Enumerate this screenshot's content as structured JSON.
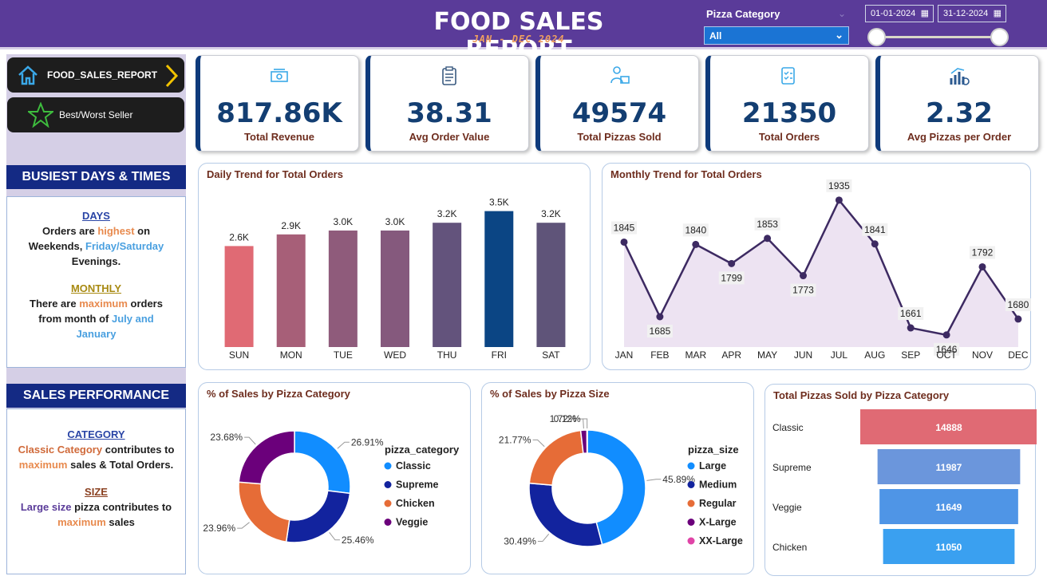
{
  "header": {
    "title": "FOOD SALES REPORT",
    "subtitle": "JAN - DEC 2024",
    "filter_label": "Pizza Category",
    "filter_value": "All",
    "date_start": "01-01-2024",
    "date_end": "31-12-2024"
  },
  "nav": {
    "report_label": "FOOD_SALES_REPORT",
    "bestworst_label": "Best/Worst Seller"
  },
  "busiest": {
    "title": "BUSIEST DAYS & TIMES",
    "days_head": "DAYS",
    "monthly_head": "MONTHLY"
  },
  "perf": {
    "title": "SALES PERFORMANCE",
    "category_head": "CATEGORY",
    "size_head": "SIZE"
  },
  "kpis": [
    {
      "value": "817.86K",
      "label": "Total Revenue",
      "icon": "cash-icon"
    },
    {
      "value": "38.31",
      "label": "Avg Order Value",
      "icon": "clipboard-icon"
    },
    {
      "value": "49574",
      "label": "Total Pizzas Sold",
      "icon": "delivery-icon"
    },
    {
      "value": "21350",
      "label": "Total Orders",
      "icon": "order-checklist-icon"
    },
    {
      "value": "2.32",
      "label": "Avg Pizzas per Order",
      "icon": "bar-growth-icon"
    }
  ],
  "colors": {
    "header": "#5a3b99",
    "kpi_accent": "#0e3a7b",
    "nav_bg": "#1d1d1d",
    "section_title": "#142a84"
  },
  "chart_data": [
    {
      "id": "daily",
      "type": "bar",
      "title": "Daily Trend for Total Orders",
      "categories": [
        "SUN",
        "MON",
        "TUE",
        "WED",
        "THU",
        "FRI",
        "SAT"
      ],
      "values": [
        2.6,
        2.9,
        3.0,
        3.0,
        3.2,
        3.5,
        3.2
      ],
      "data_labels": [
        "2.6K",
        "2.9K",
        "3.0K",
        "3.0K",
        "3.2K",
        "3.5K",
        "3.2K"
      ],
      "colors": [
        "#e06a74",
        "#a75f78",
        "#8f5b7b",
        "#85597d",
        "#63537c",
        "#0b4584",
        "#5f5479"
      ],
      "ylim": [
        0,
        3.8
      ]
    },
    {
      "id": "monthly",
      "type": "area",
      "title": "Monthly Trend for Total Orders",
      "categories": [
        "JAN",
        "FEB",
        "MAR",
        "APR",
        "MAY",
        "JUN",
        "JUL",
        "AUG",
        "SEP",
        "OCT",
        "NOV",
        "DEC"
      ],
      "values": [
        1845,
        1685,
        1840,
        1799,
        1853,
        1773,
        1935,
        1841,
        1661,
        1646,
        1792,
        1680
      ],
      "ylim": [
        1620,
        1945
      ]
    },
    {
      "id": "category_pct",
      "type": "pie",
      "title": "% of Sales by Pizza Category",
      "legend_title": "pizza_category",
      "labels": [
        "Classic",
        "Supreme",
        "Chicken",
        "Veggie"
      ],
      "values": [
        26.91,
        25.46,
        23.96,
        23.68
      ],
      "data_labels": [
        "26.91%",
        "25.46%",
        "23.96%",
        "23.68%"
      ],
      "colors": [
        "#118dff",
        "#12239e",
        "#e66c37",
        "#6b007b"
      ]
    },
    {
      "id": "size_pct",
      "type": "pie",
      "title": "% of Sales by Pizza Size",
      "legend_title": "pizza_size",
      "labels": [
        "Large",
        "Medium",
        "Regular",
        "X-Large",
        "XX-Large"
      ],
      "values": [
        45.89,
        30.49,
        21.77,
        1.72,
        0.12
      ],
      "data_labels": [
        "45.89%",
        "30.49%",
        "21.77%",
        "1.72%",
        "0.12%"
      ],
      "colors": [
        "#118dff",
        "#12239e",
        "#e66c37",
        "#6b007b",
        "#e044a7"
      ]
    },
    {
      "id": "category_total",
      "type": "bar",
      "title": "Total Pizzas Sold by Pizza Category",
      "categories": [
        "Classic",
        "Supreme",
        "Veggie",
        "Chicken"
      ],
      "values": [
        14888,
        11987,
        11649,
        11050
      ],
      "colors": [
        "#e06a74",
        "#6b96dc",
        "#4f95e6",
        "#3aa0f0"
      ]
    }
  ]
}
